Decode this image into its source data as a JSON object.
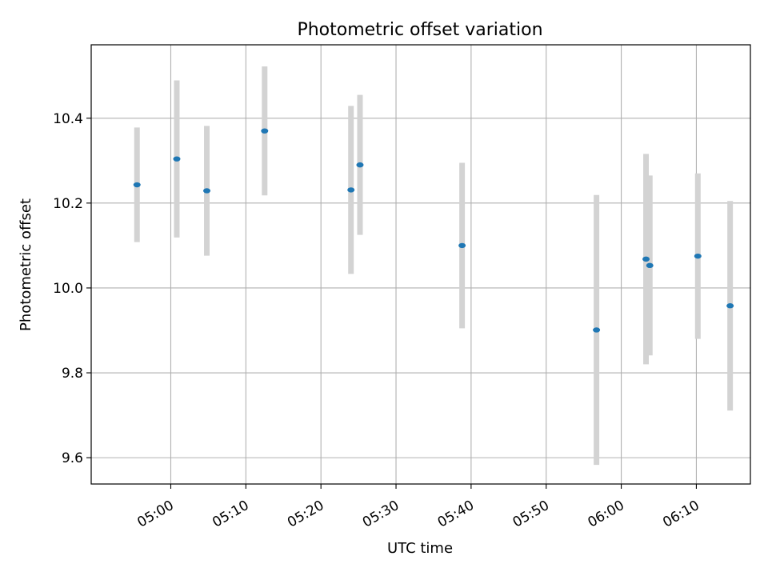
{
  "chart_data": {
    "type": "scatter",
    "title": "Photometric offset variation",
    "xlabel": "UTC time",
    "ylabel": "Photometric offset",
    "x_tick_labels": [
      "05:00",
      "05:10",
      "05:20",
      "05:30",
      "05:40",
      "05:50",
      "06:00",
      "06:10"
    ],
    "x_tick_minutes": [
      300,
      310,
      320,
      330,
      340,
      350,
      360,
      370
    ],
    "xlim_minutes": [
      289.4,
      377.2
    ],
    "y_tick_labels": [
      "9.6",
      "9.8",
      "10.0",
      "10.2",
      "10.4"
    ],
    "y_ticks": [
      9.6,
      9.8,
      10.0,
      10.2,
      10.4
    ],
    "ylim": [
      9.538,
      10.573
    ],
    "grid": true,
    "x_unit": "UTC time (minutes after 00:00)",
    "series": [
      {
        "points": [
          {
            "t": "04:55:30",
            "x": 295.5,
            "y": 10.243,
            "err": 0.135
          },
          {
            "t": "05:00:50",
            "x": 300.8,
            "y": 10.304,
            "err": 0.185
          },
          {
            "t": "05:04:50",
            "x": 304.8,
            "y": 10.229,
            "err": 0.153
          },
          {
            "t": "05:12:30",
            "x": 312.5,
            "y": 10.37,
            "err": 0.152
          },
          {
            "t": "05:24:00",
            "x": 324.0,
            "y": 10.231,
            "err": 0.198
          },
          {
            "t": "05:25:10",
            "x": 325.2,
            "y": 10.29,
            "err": 0.165
          },
          {
            "t": "05:38:50",
            "x": 338.8,
            "y": 10.1,
            "err": 0.195
          },
          {
            "t": "05:56:40",
            "x": 356.7,
            "y": 9.901,
            "err": 0.318
          },
          {
            "t": "06:03:20",
            "x": 363.3,
            "y": 10.068,
            "err": 0.248
          },
          {
            "t": "06:03:50",
            "x": 363.8,
            "y": 10.053,
            "err": 0.212
          },
          {
            "t": "06:10:10",
            "x": 370.2,
            "y": 10.075,
            "err": 0.195
          },
          {
            "t": "06:14:30",
            "x": 374.5,
            "y": 9.958,
            "err": 0.247
          }
        ]
      }
    ],
    "marker_color": "#1f77b4",
    "errorbar_color": "#d3d3d3",
    "grid_color": "#b0b0b0"
  }
}
